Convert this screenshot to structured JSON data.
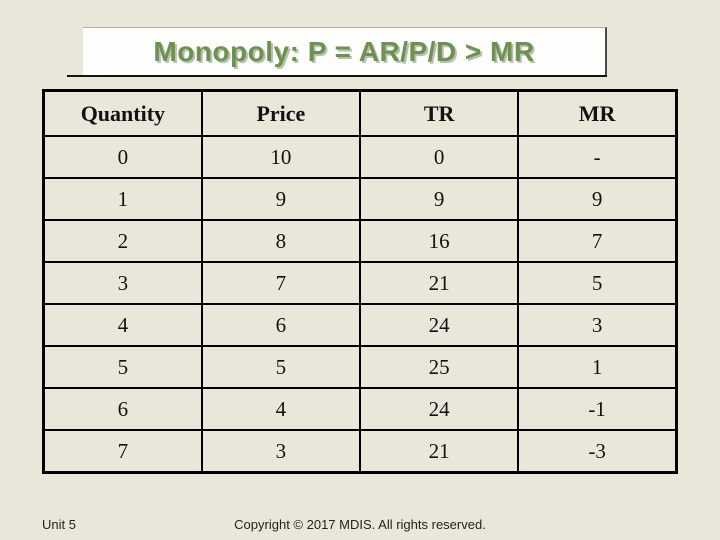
{
  "slide": {
    "title": "Monopoly: P = AR/P/D > MR",
    "footer_left": "Unit 5",
    "footer_center": "Copyright © 2017 MDIS. All rights reserved."
  },
  "colors": {
    "background": "#eae7da",
    "title_text_green": "#6d9150",
    "title_box_background": "#fefefc",
    "table_border": "#000000",
    "table_text": "#121212"
  },
  "table": {
    "headers": [
      "Quantity",
      "Price",
      "TR",
      "MR"
    ],
    "rows": [
      [
        "0",
        "10",
        "0",
        "-"
      ],
      [
        "1",
        "9",
        "9",
        "9"
      ],
      [
        "2",
        "8",
        "16",
        "7"
      ],
      [
        "3",
        "7",
        "21",
        "5"
      ],
      [
        "4",
        "6",
        "24",
        "3"
      ],
      [
        "5",
        "5",
        "25",
        "1"
      ],
      [
        "6",
        "4",
        "24",
        "-1"
      ],
      [
        "7",
        "3",
        "21",
        "-3"
      ]
    ]
  }
}
